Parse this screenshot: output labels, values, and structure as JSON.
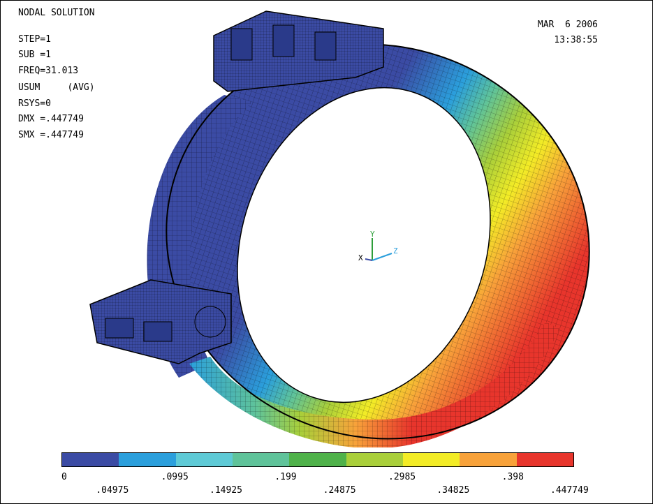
{
  "title": "NODAL SOLUTION",
  "info": [
    "STEP=1",
    "SUB =1",
    "FREQ=31.013",
    "USUM     (AVG)",
    "RSYS=0",
    "DMX =.447749",
    "SMX =.447749"
  ],
  "date": "MAR  6 2006",
  "time": "13:38:55",
  "triad": {
    "x_label": "X",
    "y_label": "Y",
    "z_label": "Z"
  },
  "legend": {
    "colors": [
      "#3b4ba4",
      "#2b9fdc",
      "#5ecad6",
      "#5fc39a",
      "#4fb24a",
      "#a9cf3a",
      "#f3ec26",
      "#f8a23a",
      "#e8352c"
    ],
    "upper_labels": [
      "0",
      ".0995",
      ".199",
      ".2985",
      ".398"
    ],
    "lower_labels": [
      ".04975",
      ".14925",
      ".24875",
      ".34825",
      ".447749"
    ]
  }
}
